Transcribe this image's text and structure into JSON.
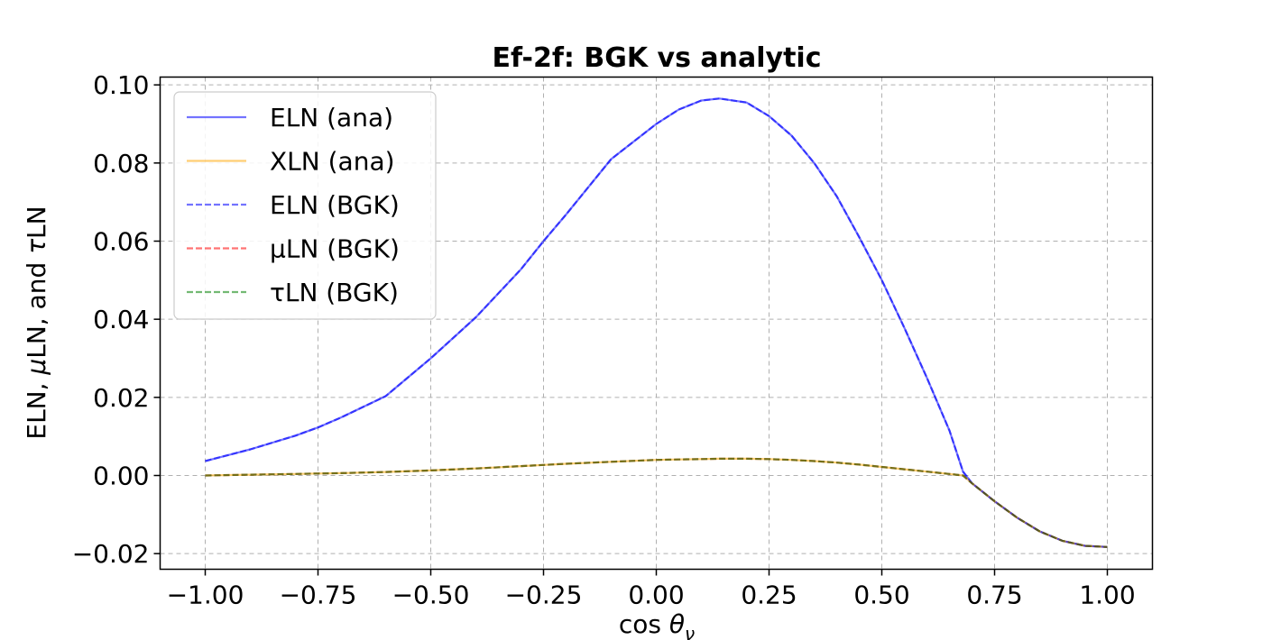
{
  "chart_data": {
    "type": "line",
    "title": "Ef-2f: BGK vs analytic",
    "xlabel": "cos θ_ν",
    "ylabel": "ELN, μLN, and τLN",
    "xlim": [
      -1.1,
      1.1
    ],
    "ylim": [
      -0.024,
      0.102
    ],
    "grid": true,
    "legend_position": "upper-left",
    "x_ticks": [
      -1.0,
      -0.75,
      -0.5,
      -0.25,
      0.0,
      0.25,
      0.5,
      0.75,
      1.0
    ],
    "x_tick_labels": [
      "−1.00",
      "−0.75",
      "−0.50",
      "−0.25",
      "0.00",
      "0.25",
      "0.50",
      "0.75",
      "1.00"
    ],
    "y_ticks": [
      -0.02,
      0.0,
      0.02,
      0.04,
      0.06,
      0.08,
      0.1
    ],
    "y_tick_labels": [
      "−0.02",
      "0.00",
      "0.02",
      "0.04",
      "0.06",
      "0.08",
      "0.10"
    ],
    "x": [
      -1.0,
      -0.9,
      -0.8,
      -0.75,
      -0.7,
      -0.6,
      -0.5,
      -0.4,
      -0.3,
      -0.25,
      -0.2,
      -0.1,
      0.0,
      0.05,
      0.1,
      0.14,
      0.2,
      0.25,
      0.3,
      0.35,
      0.4,
      0.45,
      0.5,
      0.55,
      0.6,
      0.65,
      0.68,
      0.7,
      0.75,
      0.8,
      0.85,
      0.9,
      0.95,
      1.0
    ],
    "series": [
      {
        "name": "ELN (ana)",
        "color": "#0000ff",
        "style": "solid",
        "values": [
          0.0037,
          0.0067,
          0.0102,
          0.0123,
          0.0148,
          0.0203,
          0.03,
          0.0405,
          0.0528,
          0.06,
          0.0668,
          0.081,
          0.09,
          0.0937,
          0.096,
          0.0965,
          0.0955,
          0.092,
          0.087,
          0.08,
          0.0715,
          0.061,
          0.05,
          0.0378,
          0.025,
          0.0115,
          0.001,
          -0.002,
          -0.0066,
          -0.0108,
          -0.0143,
          -0.0167,
          -0.018,
          -0.0183
        ]
      },
      {
        "name": "XLN (ana)",
        "color": "#ffa500",
        "style": "solid",
        "values": [
          0.0,
          0.0002,
          0.0004,
          0.0005,
          0.0006,
          0.0009,
          0.0013,
          0.0018,
          0.0024,
          0.0027,
          0.003,
          0.0035,
          0.004,
          0.0041,
          0.0042,
          0.0043,
          0.0043,
          0.0042,
          0.004,
          0.0037,
          0.0033,
          0.0028,
          0.0022,
          0.0016,
          0.001,
          0.0004,
          0.0,
          -0.002,
          -0.0066,
          -0.0108,
          -0.0143,
          -0.0167,
          -0.018,
          -0.0183
        ]
      },
      {
        "name": "ELN (BGK)",
        "color": "#0000ff",
        "style": "dashed",
        "values": [
          0.0037,
          0.0067,
          0.0102,
          0.0123,
          0.0148,
          0.0203,
          0.03,
          0.0405,
          0.0528,
          0.06,
          0.0668,
          0.081,
          0.09,
          0.0937,
          0.096,
          0.0965,
          0.0955,
          0.092,
          0.087,
          0.08,
          0.0715,
          0.061,
          0.05,
          0.0378,
          0.025,
          0.0115,
          0.001,
          -0.002,
          -0.0066,
          -0.0108,
          -0.0143,
          -0.0167,
          -0.018,
          -0.0183
        ]
      },
      {
        "name": "μLN (BGK)",
        "color": "#ff0000",
        "style": "dashed",
        "values": [
          0.0,
          0.0002,
          0.0004,
          0.0005,
          0.0006,
          0.0009,
          0.0013,
          0.0018,
          0.0024,
          0.0027,
          0.003,
          0.0035,
          0.004,
          0.0041,
          0.0042,
          0.0043,
          0.0043,
          0.0042,
          0.004,
          0.0037,
          0.0033,
          0.0028,
          0.0022,
          0.0016,
          0.001,
          0.0004,
          0.0,
          -0.002,
          -0.0066,
          -0.0108,
          -0.0143,
          -0.0167,
          -0.018,
          -0.0183
        ]
      },
      {
        "name": "τLN (BGK)",
        "color": "#008000",
        "style": "dashed",
        "values": [
          0.0,
          0.0002,
          0.0004,
          0.0005,
          0.0006,
          0.0009,
          0.0013,
          0.0018,
          0.0024,
          0.0027,
          0.003,
          0.0035,
          0.004,
          0.0041,
          0.0042,
          0.0043,
          0.0043,
          0.0042,
          0.004,
          0.0037,
          0.0033,
          0.0028,
          0.0022,
          0.0016,
          0.001,
          0.0004,
          0.0,
          -0.002,
          -0.0066,
          -0.0108,
          -0.0143,
          -0.0167,
          -0.018,
          -0.0183
        ]
      }
    ]
  }
}
